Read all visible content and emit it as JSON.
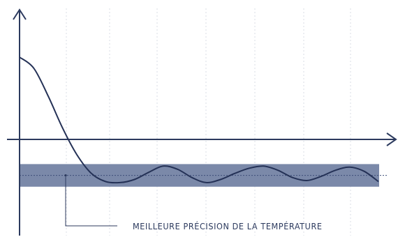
{
  "chart_data": {
    "type": "line",
    "title": "",
    "xlabel": "",
    "ylabel": "",
    "grid": {
      "vertical": true,
      "horizontal": false
    },
    "xlim": [
      0,
      100
    ],
    "ylim": [
      -7,
      10
    ],
    "series": [
      {
        "name": "",
        "x": [
          0,
          4,
          8,
          12,
          16,
          20,
          24,
          28,
          32,
          36,
          40,
          44,
          48,
          52,
          56,
          60,
          64,
          68,
          72,
          76,
          80,
          84,
          88,
          92,
          96,
          100
        ],
        "y": [
          8,
          6.9,
          4.2,
          1.1,
          -1.5,
          -3.3,
          -4.1,
          -4.2,
          -3.9,
          -3.2,
          -2.6,
          -2.9,
          -3.7,
          -4.2,
          -3.9,
          -3.3,
          -2.8,
          -2.6,
          -3.0,
          -3.7,
          -4.0,
          -3.6,
          -3.0,
          -2.7,
          -3.1,
          -4.1
        ]
      }
    ],
    "band": {
      "low": -4.6,
      "high": -2.4,
      "center": -3.5,
      "color": "#7b89a9"
    },
    "annotation": {
      "text": "MEILLEURE PRÉCISION DE LA TEMPÉRATURE"
    },
    "colors": {
      "axis": "#2c3a5e",
      "curve": "#243156",
      "grid": "#d9dce4",
      "band_line": "#3d4d78"
    }
  }
}
